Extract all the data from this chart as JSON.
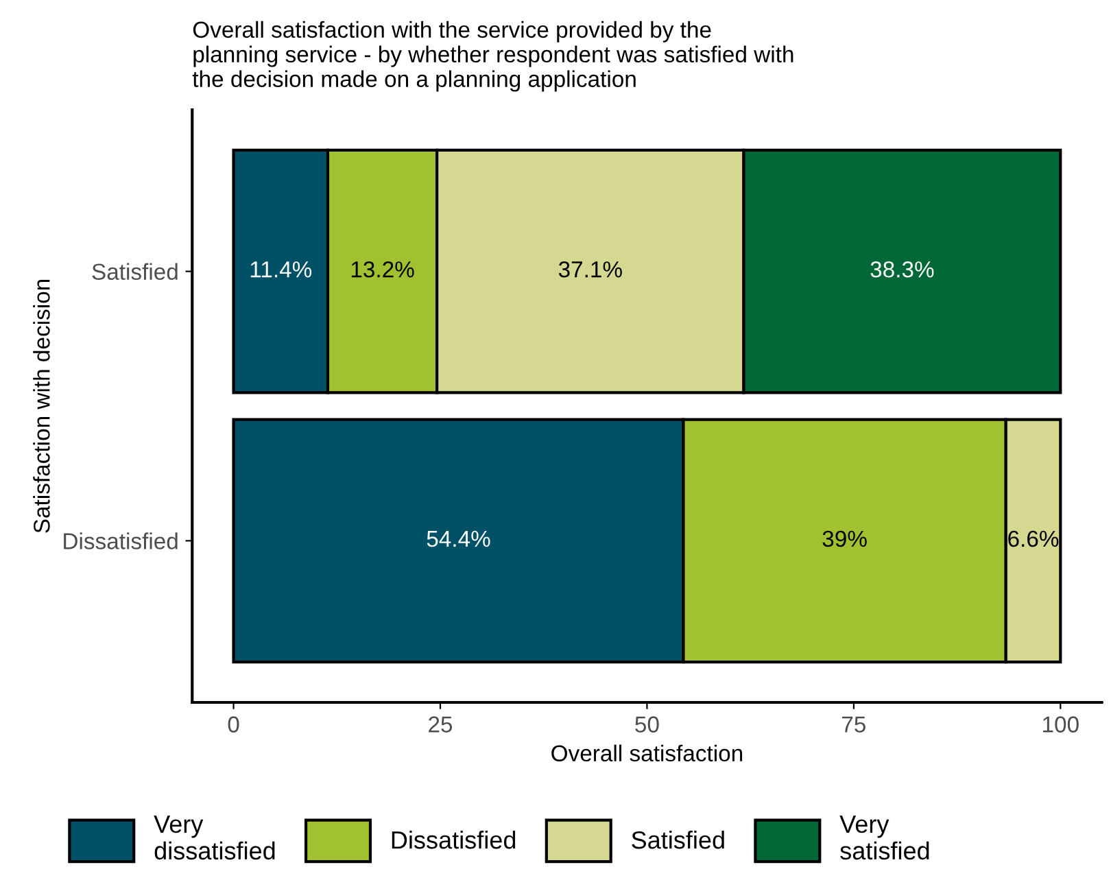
{
  "chart_data": {
    "type": "bar",
    "orientation": "horizontal",
    "stacked": true,
    "title": "Overall satisfaction with the service provided by the\nplanning service - by whether respondent was satisfied with\nthe decision made on a planning application",
    "xlabel": "Overall satisfaction",
    "ylabel": "Satisfaction with decision",
    "categories": [
      "Satisfied",
      "Dissatisfied"
    ],
    "series": [
      {
        "name": "Very\ndissatisfied",
        "color": "#005066",
        "values": [
          11.4,
          54.4
        ],
        "value_labels": [
          "11.4%",
          "54.4%"
        ]
      },
      {
        "name": "Dissatisfied",
        "color": "#a2c131",
        "values": [
          13.2,
          39
        ],
        "value_labels": [
          "13.2%",
          "39%"
        ]
      },
      {
        "name": "Satisfied",
        "color": "#d5d890",
        "values": [
          37.1,
          6.6
        ],
        "value_labels": [
          "37.1%",
          "6.6%"
        ]
      },
      {
        "name": "Very\nsatisfied",
        "color": "#006837",
        "values": [
          38.3,
          null
        ],
        "value_labels": [
          "38.3%",
          null
        ]
      }
    ],
    "xlim": [
      -5,
      105
    ],
    "xticks": [
      0,
      25,
      50,
      75,
      100
    ],
    "grid": false,
    "legend": "bottom"
  }
}
